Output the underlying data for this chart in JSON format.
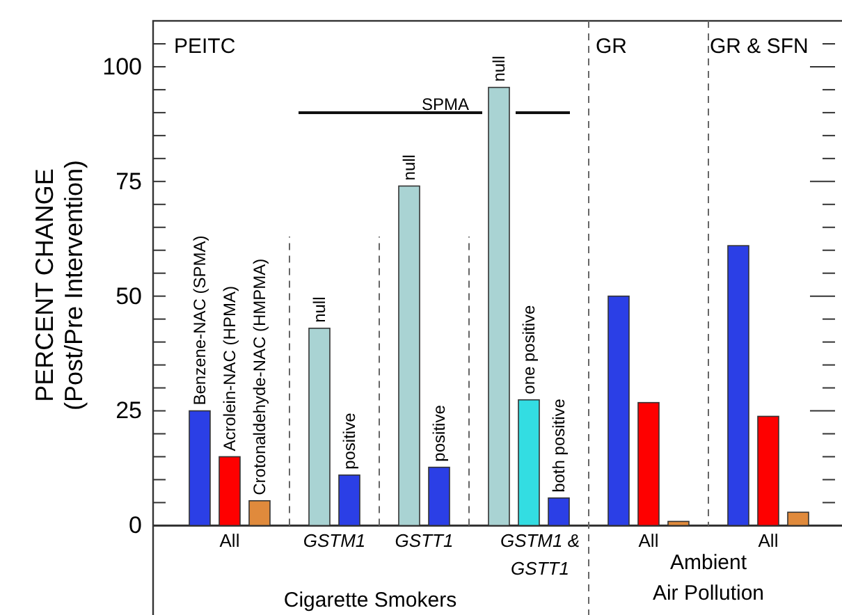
{
  "chart_data": {
    "type": "bar",
    "ylabel": "PERCENT CHANGE (Post/Pre Intervention)",
    "categories": [
      null,
      null,
      null,
      null,
      null,
      null,
      null,
      null,
      null,
      null,
      null,
      null,
      null,
      null,
      null,
      null
    ],
    "values": [
      25,
      15,
      5.4,
      43,
      11,
      74,
      12.7,
      95.5,
      27.4,
      6,
      50,
      26.8,
      0.9,
      61,
      23.8,
      2.9
    ],
    "colors": [
      "#2b3fe6",
      "#fe0000",
      "#e08a3c",
      "#a9d3d3",
      "#2b3fe6",
      "#a9d3d3",
      "#2b3fe6",
      "#a9d3d3",
      "#33dde2",
      "#2b3fe6",
      "#2b3fe6",
      "#fe0000",
      "#e08a3c",
      "#2b3fe6",
      "#fe0000",
      "#e08a3c"
    ],
    "ylim": [
      0,
      110
    ],
    "yticks": [
      0,
      {
        "value": 5,
        "label": null
      },
      {
        "value": 10,
        "label": null
      },
      {
        "value": 15,
        "label": null
      },
      {
        "value": 20,
        "label": null
      },
      25,
      {
        "value": 30,
        "label": null
      },
      {
        "value": 35,
        "label": null
      },
      {
        "value": 40,
        "label": null
      },
      {
        "value": 45,
        "label": null
      },
      50,
      {
        "value": 55,
        "label": null
      },
      {
        "value": 60,
        "label": null
      },
      {
        "value": 65,
        "label": null
      },
      {
        "value": 70,
        "label": null
      },
      75,
      {
        "value": 80,
        "label": null
      },
      {
        "value": 85,
        "label": null
      },
      {
        "value": 90,
        "label": null
      },
      {
        "value": 95,
        "label": null
      },
      100,
      {
        "value": 105,
        "label": null
      }
    ],
    "grid": false,
    "annotations": [
      "PEITC",
      "GR",
      "GR & SFN",
      "SPMA",
      "All",
      "GSTM1",
      "GSTT1",
      "GSTM1 & GSTT1",
      "All",
      "All",
      "Cigarette Smokers",
      "Ambient Air Pollution",
      {
        "text": "Benzene-NAC (SPMA)",
        "y": 25
      },
      {
        "text": "Acrolein-NAC (HPMA)",
        "y": 15
      },
      {
        "text": "Crotonaldehyde-NAC (HMPMA)",
        "y": 5.4
      },
      {
        "text": "null",
        "y": 43
      },
      {
        "text": "positive",
        "y": 11
      },
      {
        "text": "null",
        "y": 74
      },
      {
        "text": "positive",
        "y": 12.7
      },
      {
        "text": "null",
        "y": 95.5
      },
      {
        "text": "one positive",
        "y": 27.4
      },
      {
        "text": "both positive",
        "y": 6
      }
    ]
  }
}
